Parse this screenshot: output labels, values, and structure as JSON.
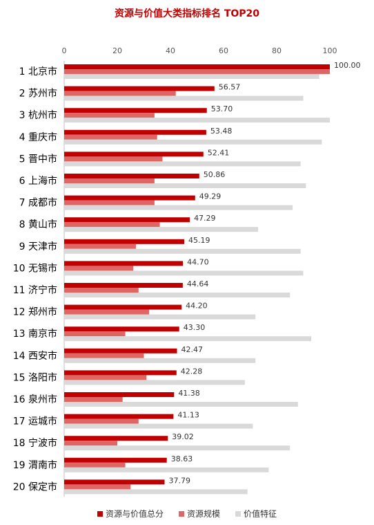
{
  "chart_data": {
    "type": "bar",
    "orientation": "horizontal",
    "title": "资源与价值大类指标排名 TOP20",
    "xlim": [
      0,
      100
    ],
    "x_ticks": [
      0,
      20,
      40,
      60,
      80,
      100
    ],
    "ranks": [
      "1",
      "2",
      "3",
      "4",
      "5",
      "6",
      "7",
      "8",
      "9",
      "10",
      "11",
      "12",
      "13",
      "14",
      "15",
      "16",
      "17",
      "18",
      "19",
      "20"
    ],
    "categories": [
      "北京市",
      "苏州市",
      "杭州市",
      "重庆市",
      "晋中市",
      "上海市",
      "成都市",
      "黄山市",
      "天津市",
      "无锡市",
      "济宁市",
      "郑州市",
      "南京市",
      "西安市",
      "洛阳市",
      "泉州市",
      "运城市",
      "宁波市",
      "渭南市",
      "保定市"
    ],
    "series": [
      {
        "name": "资源与价值总分",
        "color": "#c00000",
        "values": [
          100.0,
          56.57,
          53.7,
          53.48,
          52.41,
          50.86,
          49.29,
          47.29,
          45.19,
          44.7,
          44.64,
          44.2,
          43.3,
          42.47,
          42.28,
          41.38,
          41.13,
          39.02,
          38.63,
          37.79
        ],
        "labels": [
          "100.00",
          "56.57",
          "53.70",
          "53.48",
          "52.41",
          "50.86",
          "49.29",
          "47.29",
          "45.19",
          "44.70",
          "44.64",
          "44.20",
          "43.30",
          "42.47",
          "42.28",
          "41.38",
          "41.13",
          "39.02",
          "38.63",
          "37.79"
        ]
      },
      {
        "name": "资源规模",
        "color": "#e06666",
        "values": [
          100,
          42,
          34,
          35,
          37,
          34,
          34,
          36,
          27,
          26,
          28,
          32,
          23,
          30,
          31,
          22,
          28,
          20,
          23,
          25
        ]
      },
      {
        "name": "价值特征",
        "color": "#d9d9d9",
        "values": [
          96,
          90,
          100,
          97,
          89,
          91,
          86,
          73,
          89,
          90,
          85,
          72,
          93,
          72,
          68,
          88,
          71,
          85,
          77,
          69
        ]
      }
    ],
    "legend": "bottom"
  }
}
